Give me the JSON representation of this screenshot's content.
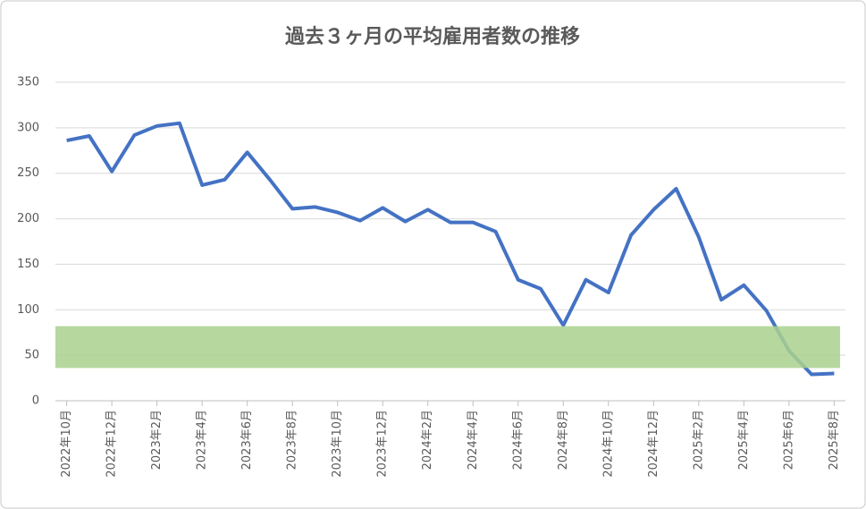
{
  "chart_data": {
    "type": "line",
    "title": "過去３ヶ月の平均雇用者数の推移",
    "categories": [
      "2022年10月",
      null,
      "2022年12月",
      null,
      "2023年2月",
      null,
      "2023年4月",
      null,
      "2023年6月",
      null,
      "2023年8月",
      null,
      "2023年10月",
      null,
      "2023年12月",
      null,
      "2024年2月",
      null,
      "2024年4月",
      null,
      "2024年6月",
      null,
      "2024年8月",
      null,
      "2024年10月",
      null,
      "2024年12月",
      null,
      "2025年2月",
      null,
      "2025年4月",
      null,
      "2025年6月",
      null,
      "2025年8月"
    ],
    "values": [
      286,
      291,
      252,
      292,
      302,
      305,
      237,
      243,
      273,
      243,
      211,
      213,
      207,
      198,
      212,
      197,
      210,
      196,
      196,
      186,
      133,
      123,
      83,
      133,
      119,
      182,
      210,
      233,
      180,
      111,
      127,
      99,
      55,
      29,
      30
    ],
    "color": "#4472c4",
    "band": {
      "from": 36,
      "to": 82,
      "color": "#a9d18e"
    },
    "ylim": [
      0,
      350
    ],
    "yticks": [
      0,
      50,
      100,
      150,
      200,
      250,
      300,
      350
    ],
    "grid": true
  }
}
